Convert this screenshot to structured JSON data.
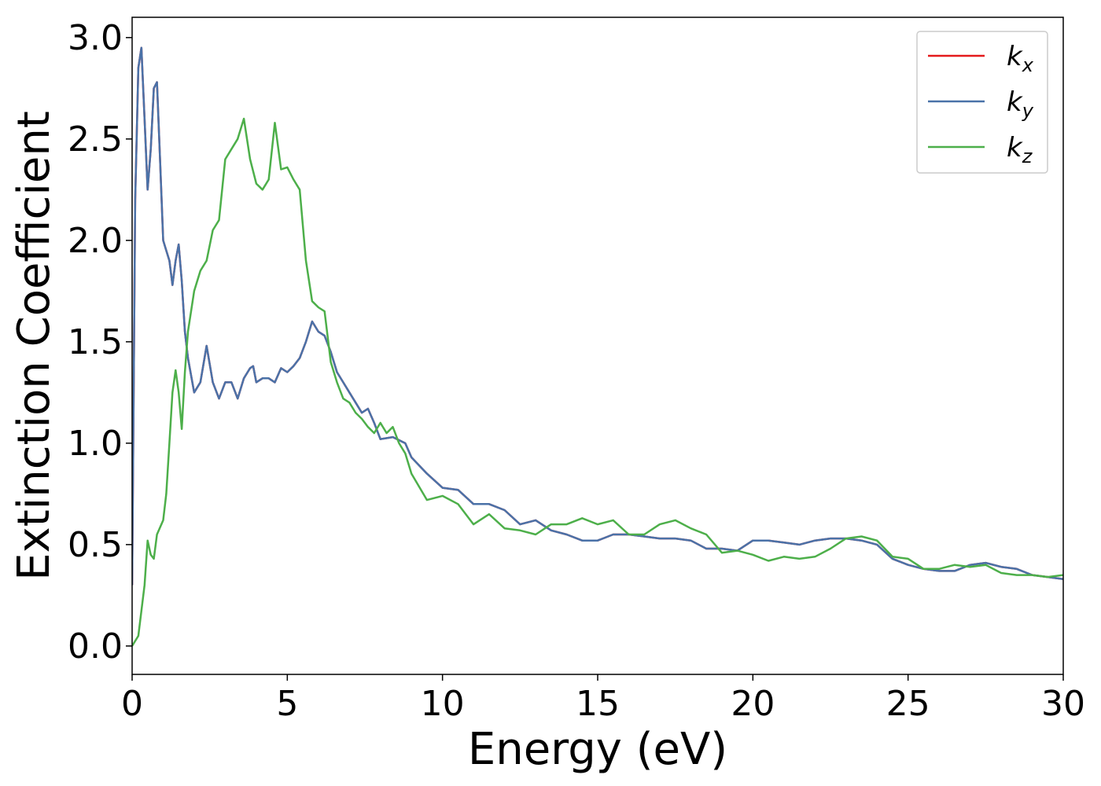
{
  "chart_data": {
    "type": "line",
    "title": "",
    "xlabel": "Energy (eV)",
    "ylabel": "Extinction Coefficient",
    "xlim": [
      0,
      30
    ],
    "ylim": [
      -0.14,
      3.1
    ],
    "xticks": [
      0,
      5,
      10,
      15,
      20,
      25,
      30
    ],
    "xtick_labels": [
      "0",
      "5",
      "10",
      "15",
      "20",
      "25",
      "30"
    ],
    "yticks": [
      0.0,
      0.5,
      1.0,
      1.5,
      2.0,
      2.5,
      3.0
    ],
    "ytick_labels": [
      "0.0",
      "0.5",
      "1.0",
      "1.5",
      "2.0",
      "2.5",
      "3.0"
    ],
    "grid": false,
    "legend_position": "top-right",
    "series": [
      {
        "name": "k_x",
        "label_main": "k",
        "label_sub": "x",
        "color": "#e41a1c",
        "x": [
          0,
          0.1,
          0.2,
          0.3,
          0.4,
          0.5,
          0.6,
          0.7,
          0.8,
          0.9,
          1.0,
          1.1,
          1.2,
          1.3,
          1.4,
          1.5,
          1.6,
          1.7,
          1.8,
          2.0,
          2.2,
          2.4,
          2.6,
          2.8,
          3.0,
          3.2,
          3.4,
          3.6,
          3.8,
          3.9,
          4.0,
          4.2,
          4.4,
          4.6,
          4.8,
          5.0,
          5.2,
          5.4,
          5.6,
          5.8,
          6.0,
          6.2,
          6.4,
          6.6,
          6.8,
          7.0,
          7.2,
          7.4,
          7.6,
          7.8,
          8.0,
          8.4,
          8.8,
          9.0,
          9.5,
          10.0,
          10.5,
          11.0,
          11.5,
          12.0,
          12.5,
          13.0,
          13.5,
          14.0,
          14.5,
          15.0,
          15.5,
          16.0,
          16.5,
          17.0,
          17.5,
          18.0,
          18.5,
          19.0,
          19.5,
          20.0,
          20.5,
          21.0,
          21.5,
          22.0,
          22.5,
          23.0,
          23.5,
          24.0,
          24.5,
          25.0,
          25.5,
          26.0,
          26.5,
          27.0,
          27.5,
          28.0,
          28.5,
          29.0,
          29.5,
          30.0
        ],
        "y": [
          0.3,
          2.2,
          2.85,
          2.95,
          2.6,
          2.25,
          2.45,
          2.75,
          2.78,
          2.4,
          2.0,
          1.95,
          1.9,
          1.78,
          1.9,
          1.98,
          1.8,
          1.55,
          1.42,
          1.25,
          1.3,
          1.48,
          1.3,
          1.22,
          1.3,
          1.3,
          1.22,
          1.32,
          1.37,
          1.38,
          1.3,
          1.32,
          1.32,
          1.3,
          1.37,
          1.35,
          1.38,
          1.42,
          1.5,
          1.6,
          1.55,
          1.53,
          1.45,
          1.35,
          1.3,
          1.25,
          1.2,
          1.15,
          1.17,
          1.1,
          1.02,
          1.03,
          1.0,
          0.93,
          0.85,
          0.78,
          0.77,
          0.7,
          0.7,
          0.67,
          0.6,
          0.62,
          0.57,
          0.55,
          0.52,
          0.52,
          0.55,
          0.55,
          0.54,
          0.53,
          0.53,
          0.52,
          0.48,
          0.48,
          0.47,
          0.52,
          0.52,
          0.51,
          0.5,
          0.52,
          0.53,
          0.53,
          0.52,
          0.5,
          0.43,
          0.4,
          0.38,
          0.37,
          0.37,
          0.4,
          0.41,
          0.39,
          0.38,
          0.35,
          0.34,
          0.33
        ]
      },
      {
        "name": "k_y",
        "label_main": "k",
        "label_sub": "y",
        "color": "#4a72a8",
        "x": [
          0,
          0.1,
          0.2,
          0.3,
          0.4,
          0.5,
          0.6,
          0.7,
          0.8,
          0.9,
          1.0,
          1.1,
          1.2,
          1.3,
          1.4,
          1.5,
          1.6,
          1.7,
          1.8,
          2.0,
          2.2,
          2.4,
          2.6,
          2.8,
          3.0,
          3.2,
          3.4,
          3.6,
          3.8,
          3.9,
          4.0,
          4.2,
          4.4,
          4.6,
          4.8,
          5.0,
          5.2,
          5.4,
          5.6,
          5.8,
          6.0,
          6.2,
          6.4,
          6.6,
          6.8,
          7.0,
          7.2,
          7.4,
          7.6,
          7.8,
          8.0,
          8.4,
          8.8,
          9.0,
          9.5,
          10.0,
          10.5,
          11.0,
          11.5,
          12.0,
          12.5,
          13.0,
          13.5,
          14.0,
          14.5,
          15.0,
          15.5,
          16.0,
          16.5,
          17.0,
          17.5,
          18.0,
          18.5,
          19.0,
          19.5,
          20.0,
          20.5,
          21.0,
          21.5,
          22.0,
          22.5,
          23.0,
          23.5,
          24.0,
          24.5,
          25.0,
          25.5,
          26.0,
          26.5,
          27.0,
          27.5,
          28.0,
          28.5,
          29.0,
          29.5,
          30.0
        ],
        "y": [
          0.3,
          2.2,
          2.85,
          2.95,
          2.6,
          2.25,
          2.45,
          2.75,
          2.78,
          2.4,
          2.0,
          1.95,
          1.9,
          1.78,
          1.9,
          1.98,
          1.8,
          1.55,
          1.42,
          1.25,
          1.3,
          1.48,
          1.3,
          1.22,
          1.3,
          1.3,
          1.22,
          1.32,
          1.37,
          1.38,
          1.3,
          1.32,
          1.32,
          1.3,
          1.37,
          1.35,
          1.38,
          1.42,
          1.5,
          1.6,
          1.55,
          1.53,
          1.45,
          1.35,
          1.3,
          1.25,
          1.2,
          1.15,
          1.17,
          1.1,
          1.02,
          1.03,
          1.0,
          0.93,
          0.85,
          0.78,
          0.77,
          0.7,
          0.7,
          0.67,
          0.6,
          0.62,
          0.57,
          0.55,
          0.52,
          0.52,
          0.55,
          0.55,
          0.54,
          0.53,
          0.53,
          0.52,
          0.48,
          0.48,
          0.47,
          0.52,
          0.52,
          0.51,
          0.5,
          0.52,
          0.53,
          0.53,
          0.52,
          0.5,
          0.43,
          0.4,
          0.38,
          0.37,
          0.37,
          0.4,
          0.41,
          0.39,
          0.38,
          0.35,
          0.34,
          0.33
        ]
      },
      {
        "name": "k_z",
        "label_main": "k",
        "label_sub": "z",
        "color": "#4daf4a",
        "x": [
          0,
          0.2,
          0.4,
          0.5,
          0.6,
          0.7,
          0.8,
          1.0,
          1.1,
          1.2,
          1.3,
          1.4,
          1.5,
          1.6,
          1.7,
          1.8,
          2.0,
          2.2,
          2.4,
          2.6,
          2.8,
          3.0,
          3.2,
          3.4,
          3.6,
          3.8,
          4.0,
          4.2,
          4.4,
          4.6,
          4.8,
          5.0,
          5.2,
          5.4,
          5.6,
          5.8,
          6.0,
          6.2,
          6.4,
          6.6,
          6.8,
          7.0,
          7.2,
          7.4,
          7.6,
          7.8,
          8.0,
          8.2,
          8.4,
          8.6,
          8.8,
          9.0,
          9.5,
          10.0,
          10.5,
          11.0,
          11.5,
          12.0,
          12.5,
          13.0,
          13.5,
          14.0,
          14.5,
          15.0,
          15.5,
          16.0,
          16.5,
          17.0,
          17.5,
          18.0,
          18.5,
          19.0,
          19.5,
          20.0,
          20.5,
          21.0,
          21.5,
          22.0,
          22.5,
          23.0,
          23.5,
          24.0,
          24.5,
          25.0,
          25.5,
          26.0,
          26.5,
          27.0,
          27.5,
          28.0,
          28.5,
          29.0,
          29.5,
          30.0
        ],
        "y": [
          0.0,
          0.05,
          0.3,
          0.52,
          0.45,
          0.43,
          0.55,
          0.62,
          0.75,
          1.0,
          1.25,
          1.36,
          1.25,
          1.07,
          1.35,
          1.55,
          1.75,
          1.85,
          1.9,
          2.05,
          2.1,
          2.4,
          2.45,
          2.5,
          2.6,
          2.4,
          2.28,
          2.25,
          2.3,
          2.58,
          2.35,
          2.36,
          2.3,
          2.25,
          1.9,
          1.7,
          1.67,
          1.65,
          1.4,
          1.3,
          1.22,
          1.2,
          1.15,
          1.12,
          1.08,
          1.05,
          1.1,
          1.05,
          1.08,
          1.0,
          0.95,
          0.85,
          0.72,
          0.74,
          0.7,
          0.6,
          0.65,
          0.58,
          0.57,
          0.55,
          0.6,
          0.6,
          0.63,
          0.6,
          0.62,
          0.55,
          0.55,
          0.6,
          0.62,
          0.58,
          0.55,
          0.46,
          0.47,
          0.45,
          0.42,
          0.44,
          0.43,
          0.44,
          0.48,
          0.53,
          0.54,
          0.52,
          0.44,
          0.43,
          0.38,
          0.38,
          0.4,
          0.39,
          0.4,
          0.36,
          0.35,
          0.35,
          0.34,
          0.35
        ]
      }
    ]
  }
}
